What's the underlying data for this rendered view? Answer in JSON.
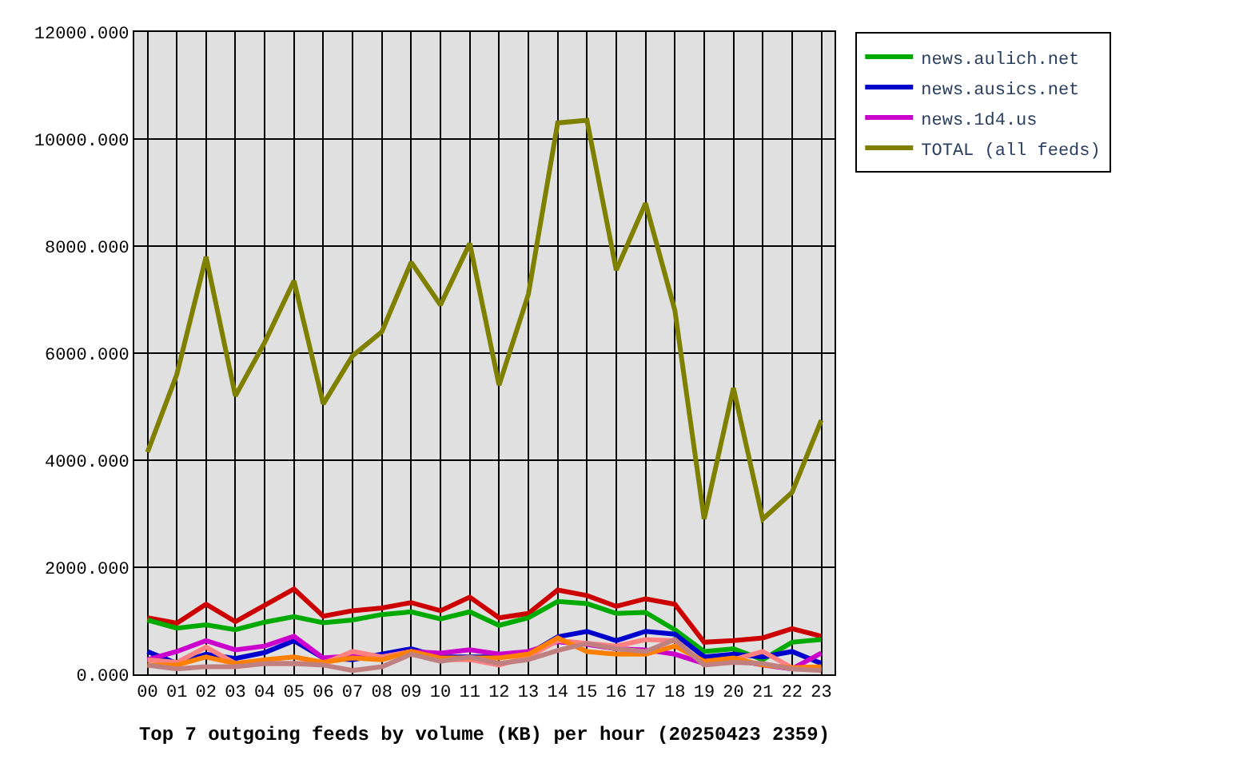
{
  "chart_data": {
    "type": "line",
    "xlabel": "Top 7 outgoing feeds by volume (KB) per hour (20250423 2359)",
    "categories": [
      "00",
      "01",
      "02",
      "03",
      "04",
      "05",
      "06",
      "07",
      "08",
      "09",
      "10",
      "11",
      "12",
      "13",
      "14",
      "15",
      "16",
      "17",
      "18",
      "19",
      "20",
      "21",
      "22",
      "23"
    ],
    "ylim": [
      0,
      12000
    ],
    "yticks": [
      {
        "value": 0,
        "label": "0.000"
      },
      {
        "value": 2000,
        "label": "2000.000"
      },
      {
        "value": 4000,
        "label": "4000.000"
      },
      {
        "value": 6000,
        "label": "6000.000"
      },
      {
        "value": 8000,
        "label": "8000.000"
      },
      {
        "value": 10000,
        "label": "10000.000"
      },
      {
        "value": 12000,
        "label": "12000.000"
      }
    ],
    "grid": true,
    "legend": "top right",
    "line_style": "solid",
    "series": [
      {
        "color": "#cc0000",
        "values": [
          1056,
          955,
          1310,
          985,
          1290,
          1594,
          1086,
          1188,
          1239,
          1340,
          1188,
          1442,
          1056,
          1137,
          1574,
          1472,
          1269,
          1411,
          1310,
          599,
          629,
          680,
          853,
          711
        ]
      },
      {
        "name": "news.aulich.net",
        "color": "#00aa00",
        "values": [
          1015,
          863,
          924,
          832,
          975,
          1076,
          964,
          1015,
          1117,
          1168,
          1036,
          1168,
          914,
          1056,
          1360,
          1320,
          1137,
          1157,
          832,
          426,
          477,
          274,
          599,
          650
        ]
      },
      {
        "name": "news.ausics.net",
        "color": "#0000cc",
        "values": [
          426,
          203,
          376,
          294,
          406,
          629,
          305,
          274,
          376,
          477,
          325,
          325,
          325,
          376,
          700,
          802,
          629,
          802,
          751,
          325,
          376,
          325,
          426,
          203
        ]
      },
      {
        "name": "news.1d4.us",
        "color": "#cc00cc",
        "values": [
          274,
          426,
          629,
          457,
          528,
          711,
          305,
          345,
          325,
          426,
          396,
          457,
          376,
          426,
          609,
          558,
          477,
          457,
          376,
          203,
          274,
          173,
          102,
          396
        ]
      },
      {
        "color": "#ff8080",
        "values": [
          274,
          223,
          508,
          203,
          203,
          203,
          203,
          426,
          325,
          426,
          274,
          274,
          173,
          325,
          629,
          579,
          528,
          650,
          629,
          203,
          274,
          426,
          122,
          102
        ]
      },
      {
        "color": "#ff8000",
        "values": [
          173,
          173,
          325,
          203,
          274,
          325,
          223,
          305,
          274,
          426,
          305,
          305,
          305,
          376,
          680,
          426,
          376,
          376,
          528,
          244,
          305,
          173,
          122,
          142
        ]
      },
      {
        "color": "#c08080",
        "values": [
          173,
          102,
          142,
          142,
          203,
          203,
          173,
          71,
          142,
          376,
          244,
          325,
          203,
          274,
          447,
          579,
          477,
          426,
          650,
          173,
          223,
          203,
          102,
          71
        ]
      },
      {
        "name": "TOTAL (all feeds)",
        "color": "#808000",
        "values": [
          4150,
          5600,
          7800,
          5200,
          6200,
          7350,
          5050,
          5950,
          6400,
          7700,
          6900,
          8050,
          5400,
          7100,
          10300,
          10350,
          7550,
          8800,
          6800,
          2900,
          5350,
          2900,
          3400,
          4750
        ]
      }
    ]
  }
}
